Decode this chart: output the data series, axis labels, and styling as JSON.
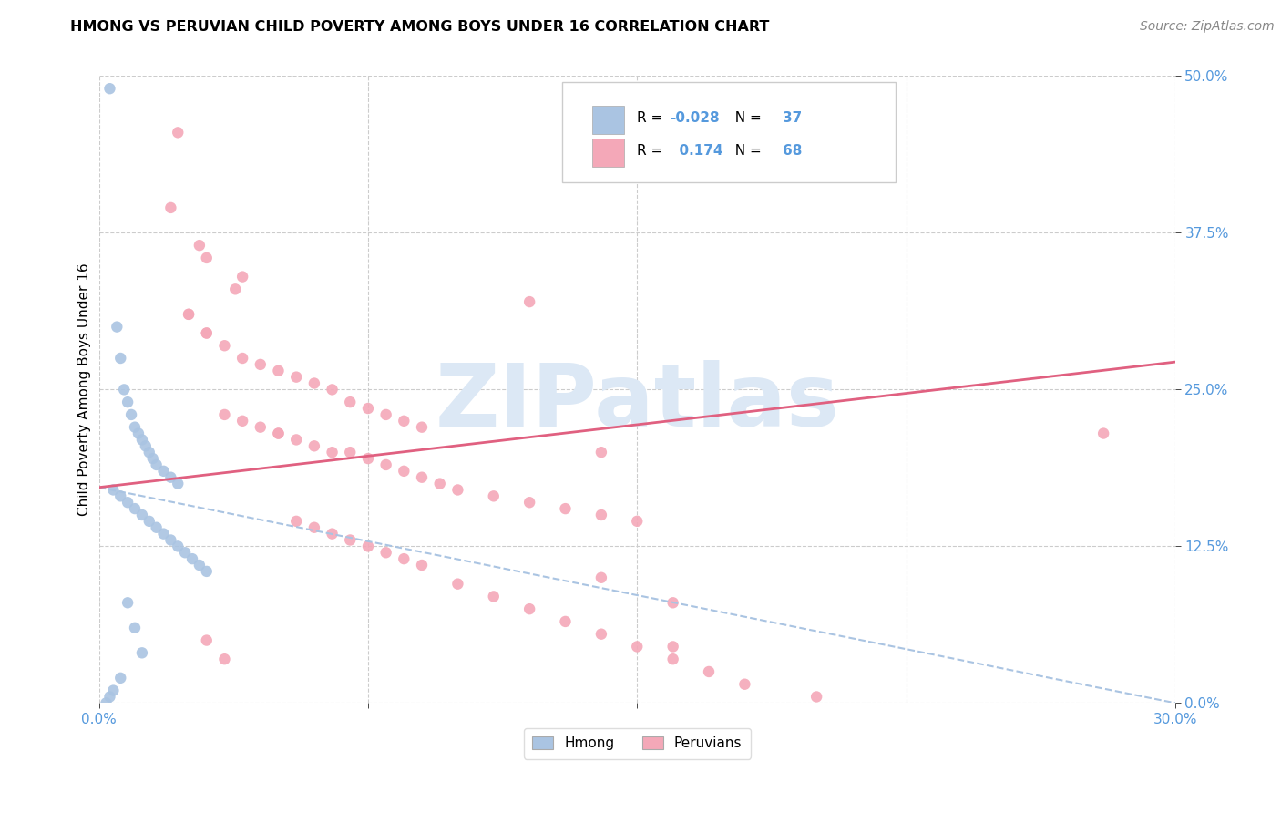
{
  "title": "HMONG VS PERUVIAN CHILD POVERTY AMONG BOYS UNDER 16 CORRELATION CHART",
  "source": "Source: ZipAtlas.com",
  "ylabel": "Child Poverty Among Boys Under 16",
  "xlim": [
    0.0,
    0.3
  ],
  "ylim": [
    0.0,
    0.5
  ],
  "ytick_vals": [
    0.0,
    0.125,
    0.25,
    0.375,
    0.5
  ],
  "ytick_labels": [
    "0.0%",
    "12.5%",
    "25.0%",
    "37.5%",
    "50.0%"
  ],
  "xtick_vals": [
    0.0,
    0.075,
    0.15,
    0.225,
    0.3
  ],
  "xtick_labels": [
    "0.0%",
    "",
    "",
    "",
    "30.0%"
  ],
  "hmong_R": -0.028,
  "hmong_N": 37,
  "peruvian_R": 0.174,
  "peruvian_N": 68,
  "hmong_color": "#aac4e2",
  "peruvian_color": "#f4a8b8",
  "hmong_trend_color": "#aac4e2",
  "peruvian_trend_color": "#e06080",
  "watermark": "ZIPatlas",
  "watermark_color": "#dce8f5",
  "legend_label_hmong": "Hmong",
  "legend_label_peruvian": "Peruvians",
  "tick_color": "#5599dd",
  "hmong_x": [
    0.003,
    0.005,
    0.006,
    0.007,
    0.008,
    0.009,
    0.01,
    0.011,
    0.012,
    0.013,
    0.014,
    0.015,
    0.016,
    0.018,
    0.02,
    0.022,
    0.004,
    0.006,
    0.008,
    0.01,
    0.012,
    0.014,
    0.016,
    0.018,
    0.02,
    0.022,
    0.024,
    0.026,
    0.028,
    0.03,
    0.008,
    0.01,
    0.012,
    0.006,
    0.004,
    0.003,
    0.002
  ],
  "hmong_y": [
    0.49,
    0.3,
    0.275,
    0.25,
    0.24,
    0.23,
    0.22,
    0.215,
    0.21,
    0.205,
    0.2,
    0.195,
    0.19,
    0.185,
    0.18,
    0.175,
    0.17,
    0.165,
    0.16,
    0.155,
    0.15,
    0.145,
    0.14,
    0.135,
    0.13,
    0.125,
    0.12,
    0.115,
    0.11,
    0.105,
    0.08,
    0.06,
    0.04,
    0.02,
    0.01,
    0.005,
    0.0
  ],
  "peruvian_x": [
    0.022,
    0.02,
    0.028,
    0.03,
    0.04,
    0.038,
    0.025,
    0.03,
    0.035,
    0.04,
    0.045,
    0.05,
    0.055,
    0.06,
    0.065,
    0.07,
    0.075,
    0.08,
    0.085,
    0.09,
    0.05,
    0.055,
    0.06,
    0.065,
    0.07,
    0.075,
    0.08,
    0.085,
    0.09,
    0.095,
    0.1,
    0.11,
    0.12,
    0.13,
    0.14,
    0.15,
    0.025,
    0.03,
    0.035,
    0.04,
    0.045,
    0.05,
    0.055,
    0.06,
    0.065,
    0.07,
    0.075,
    0.08,
    0.085,
    0.09,
    0.1,
    0.11,
    0.12,
    0.13,
    0.14,
    0.15,
    0.16,
    0.17,
    0.18,
    0.2,
    0.12,
    0.14,
    0.16,
    0.28,
    0.03,
    0.035,
    0.16,
    0.14
  ],
  "peruvian_y": [
    0.455,
    0.395,
    0.365,
    0.355,
    0.34,
    0.33,
    0.31,
    0.295,
    0.285,
    0.275,
    0.27,
    0.265,
    0.26,
    0.255,
    0.25,
    0.24,
    0.235,
    0.23,
    0.225,
    0.22,
    0.215,
    0.21,
    0.205,
    0.2,
    0.2,
    0.195,
    0.19,
    0.185,
    0.18,
    0.175,
    0.17,
    0.165,
    0.16,
    0.155,
    0.15,
    0.145,
    0.31,
    0.295,
    0.23,
    0.225,
    0.22,
    0.215,
    0.145,
    0.14,
    0.135,
    0.13,
    0.125,
    0.12,
    0.115,
    0.11,
    0.095,
    0.085,
    0.075,
    0.065,
    0.055,
    0.045,
    0.035,
    0.025,
    0.015,
    0.005,
    0.32,
    0.2,
    0.045,
    0.215,
    0.05,
    0.035,
    0.08,
    0.1
  ],
  "hmong_trend_x": [
    0.0,
    0.3
  ],
  "hmong_trend_y": [
    0.172,
    0.0
  ],
  "peruvian_trend_x": [
    0.0,
    0.3
  ],
  "peruvian_trend_y": [
    0.172,
    0.272
  ]
}
